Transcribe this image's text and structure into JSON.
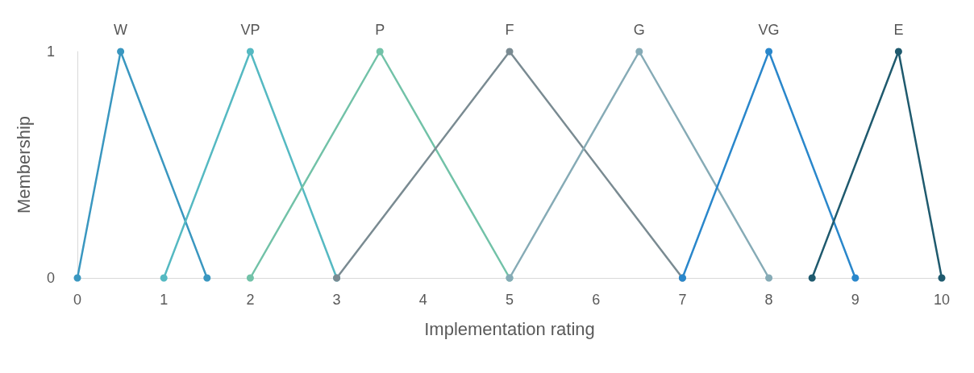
{
  "chart_data": {
    "type": "line",
    "xlabel": "Implementation rating",
    "ylabel": "Membership",
    "xlim": [
      0,
      10
    ],
    "xticks": [
      0,
      1,
      2,
      3,
      4,
      5,
      6,
      7,
      8,
      9,
      10
    ],
    "ylim": [
      0,
      1
    ],
    "yticks": [
      0,
      1
    ],
    "grid": false,
    "legend": false,
    "marker": "circle",
    "line_style": "solid",
    "series": [
      {
        "name": "W",
        "color": "#3a97c0",
        "x": [
          0,
          0.5,
          1.5
        ],
        "values": [
          0,
          1,
          0
        ]
      },
      {
        "name": "VP",
        "color": "#55b9c2",
        "x": [
          1,
          2,
          3
        ],
        "values": [
          0,
          1,
          0
        ]
      },
      {
        "name": "P",
        "color": "#72c2a8",
        "x": [
          2,
          3.5,
          5
        ],
        "values": [
          0,
          1,
          0
        ]
      },
      {
        "name": "F",
        "color": "#7a8b92",
        "x": [
          3,
          5,
          7
        ],
        "values": [
          0,
          1,
          0
        ]
      },
      {
        "name": "G",
        "color": "#86abb6",
        "x": [
          5,
          6.5,
          8
        ],
        "values": [
          0,
          1,
          0
        ]
      },
      {
        "name": "VG",
        "color": "#2a87cb",
        "x": [
          7,
          8,
          9
        ],
        "values": [
          0,
          1,
          0
        ]
      },
      {
        "name": "E",
        "color": "#1f5a6e",
        "x": [
          8.5,
          9.5,
          10
        ],
        "values": [
          0,
          1,
          0
        ]
      }
    ]
  }
}
